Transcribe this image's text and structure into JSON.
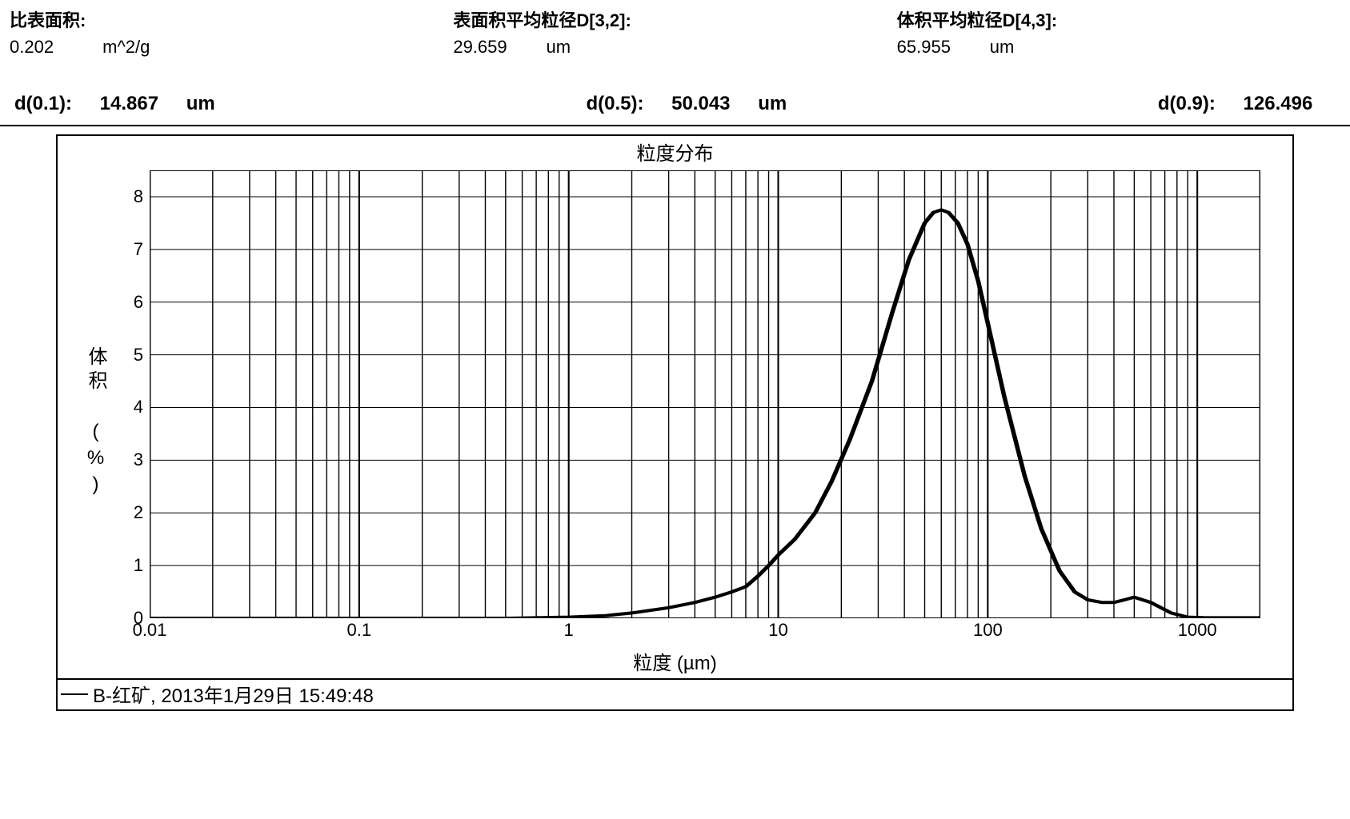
{
  "header": {
    "blocks": [
      {
        "label": "比表面积:",
        "value": "0.202",
        "unit": "m^2/g"
      },
      {
        "label": "表面积平均粒径D[3,2]:",
        "value": "29.659",
        "unit": "um"
      },
      {
        "label": "体积平均粒径D[4,3]:",
        "value": "65.955",
        "unit": "um"
      }
    ]
  },
  "percentiles": [
    {
      "label": "d(0.1):",
      "value": "14.867",
      "unit": "um"
    },
    {
      "label": "d(0.5):",
      "value": "50.043",
      "unit": "um"
    },
    {
      "label": "d(0.9):",
      "value": "126.496",
      "unit": ""
    }
  ],
  "chart": {
    "type": "line",
    "title": "粒度分布",
    "xlabel": "粒度 (µm)",
    "ylabel": "体积 (%)",
    "xscale": "log",
    "xlim": [
      0.01,
      2000
    ],
    "ylim": [
      0,
      8.5
    ],
    "x_major_ticks": [
      0.01,
      0.1,
      1,
      10,
      100,
      1000
    ],
    "x_tick_labels": [
      "0.01",
      "0.1",
      "1",
      "10",
      "100",
      "1000"
    ],
    "y_ticks": [
      0,
      1,
      2,
      3,
      4,
      5,
      6,
      7,
      8
    ],
    "line_color": "#000000",
    "line_width": 4,
    "grid_color": "#000000",
    "grid_width": 1,
    "background_color": "#ffffff",
    "border_color": "#000000",
    "border_width": 2,
    "title_fontsize": 24,
    "label_fontsize": 24,
    "tick_fontsize": 22,
    "series": {
      "x": [
        0.01,
        0.5,
        1,
        1.5,
        2,
        3,
        4,
        5,
        6,
        7,
        8,
        9,
        10,
        12,
        15,
        18,
        22,
        28,
        35,
        42,
        50,
        55,
        60,
        65,
        72,
        80,
        90,
        100,
        120,
        150,
        180,
        220,
        260,
        300,
        350,
        400,
        450,
        500,
        600,
        750,
        900,
        1100,
        2000
      ],
      "y": [
        0,
        0,
        0.02,
        0.05,
        0.1,
        0.2,
        0.3,
        0.4,
        0.5,
        0.6,
        0.8,
        1.0,
        1.2,
        1.5,
        2.0,
        2.6,
        3.4,
        4.5,
        5.8,
        6.8,
        7.5,
        7.7,
        7.75,
        7.7,
        7.5,
        7.1,
        6.4,
        5.6,
        4.2,
        2.7,
        1.7,
        0.9,
        0.5,
        0.35,
        0.3,
        0.3,
        0.35,
        0.4,
        0.3,
        0.1,
        0.02,
        0.01,
        0.01
      ]
    }
  },
  "legend": {
    "text": "B-红矿,  2013年1月29日 15:49:48"
  },
  "colors": {
    "text": "#000000",
    "background": "#ffffff"
  }
}
